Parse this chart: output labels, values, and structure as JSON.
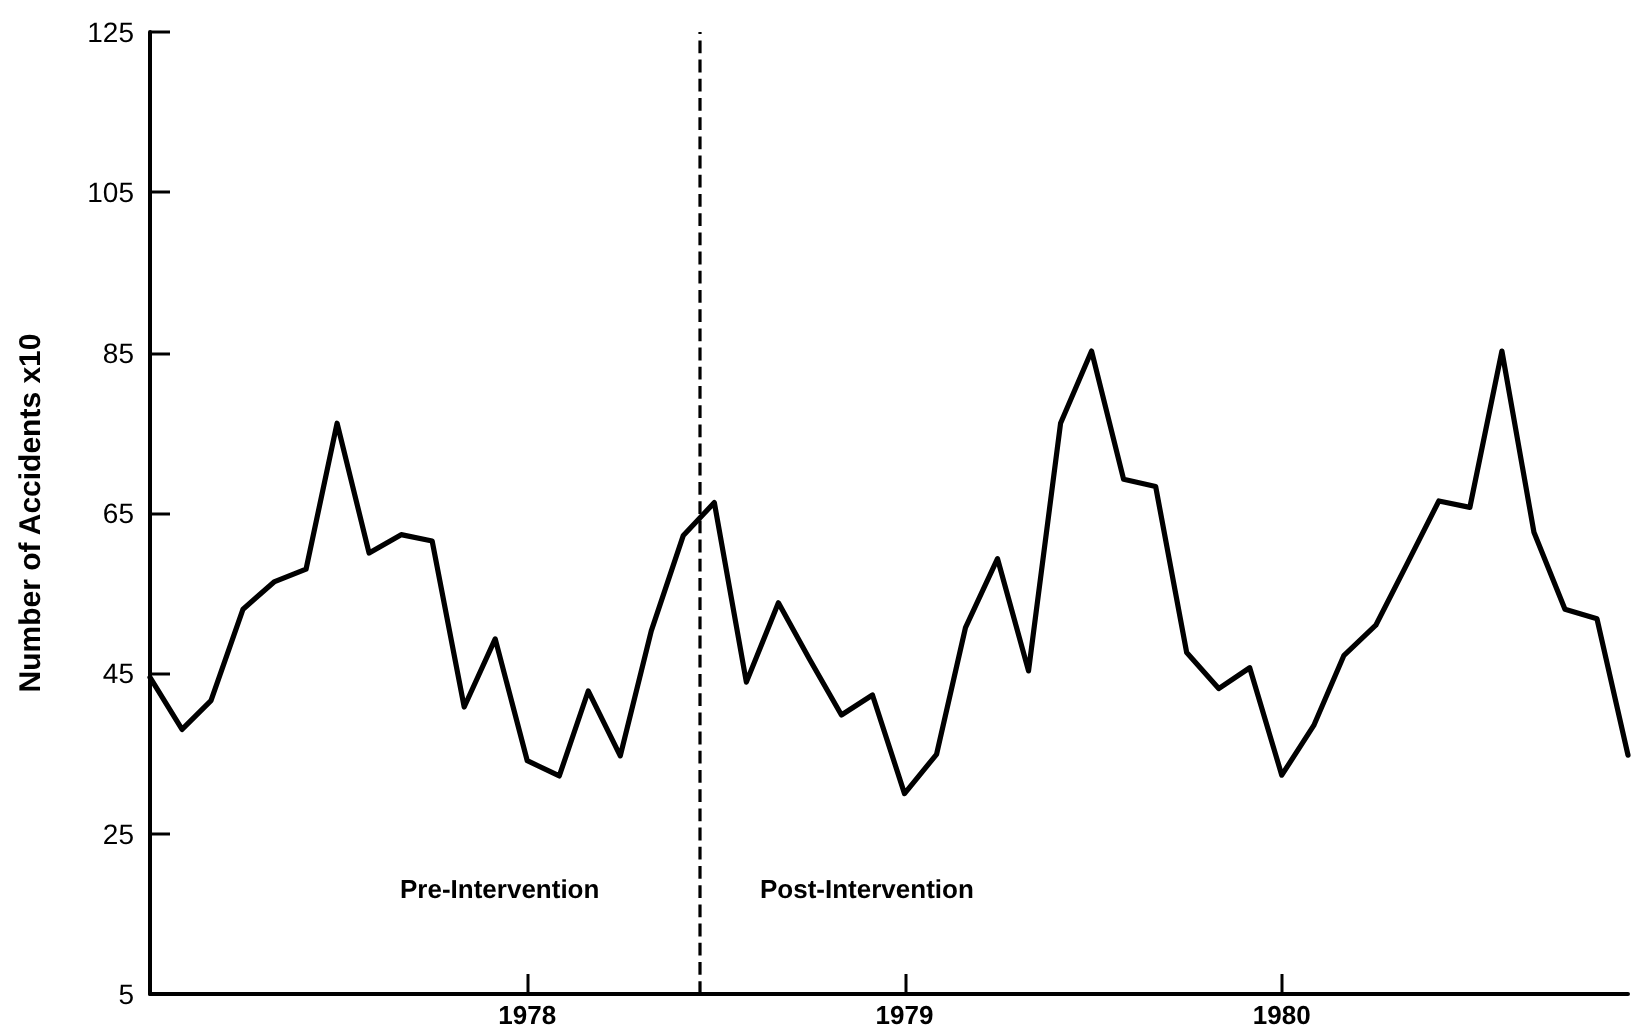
{
  "chart_data": {
    "type": "line",
    "ylabel": "Number of Accidents x10",
    "x": [
      "1977-01",
      "1977-02",
      "1977-03",
      "1977-04",
      "1977-05",
      "1977-06",
      "1977-07",
      "1977-08",
      "1977-09",
      "1977-10",
      "1977-11",
      "1977-12",
      "1978-01",
      "1978-02",
      "1978-03",
      "1978-04",
      "1978-05",
      "1978-06",
      "1978-07",
      "1978-08",
      "1978-09",
      "1978-10",
      "1978-11",
      "1978-12",
      "1979-01",
      "1979-02",
      "1979-03",
      "1979-04",
      "1979-05",
      "1979-06",
      "1979-07",
      "1979-08",
      "1979-09",
      "1979-10",
      "1979-11",
      "1979-12",
      "1980-01",
      "1980-02",
      "1980-03",
      "1980-04",
      "1980-05",
      "1980-06",
      "1980-07",
      "1980-08",
      "1980-09",
      "1980-10",
      "1980-11",
      "1980-12"
    ],
    "series": [
      {
        "color": "#000000",
        "values": [
          44.5,
          38,
          41.6,
          53,
          56.4,
          58,
          76.2,
          60,
          62.3,
          61.5,
          40.8,
          49.3,
          34.1,
          32.2,
          42.8,
          34.7,
          50.3,
          62.2,
          66.3,
          43.9,
          53.8,
          46.8,
          39.8,
          42.3,
          30,
          34.9,
          50.7,
          59.3,
          45.3,
          76.2,
          85.2,
          69.2,
          68.3,
          47.6,
          43.1,
          45.7,
          32.3,
          38.5,
          47.2,
          51,
          58.6,
          66.5,
          65.7,
          85.2,
          62.6,
          53,
          51.8,
          34.8
        ]
      }
    ],
    "xlim": [
      "1977-01",
      "1980-12"
    ],
    "xticks": [
      {
        "value": "1978-01",
        "label": "1978"
      },
      {
        "value": "1979-01",
        "label": "1979"
      },
      {
        "value": "1980-01",
        "label": "1980"
      }
    ],
    "ylim": [
      5,
      125
    ],
    "yticks": [
      5,
      25,
      45,
      65,
      85,
      105,
      125
    ],
    "ref_lines": [
      {
        "axis": "x",
        "value": "1978-06-16",
        "color": "#000000",
        "line_style": "dashed"
      }
    ],
    "annotations": [
      "Pre-Intervention",
      "Post-Intervention"
    ],
    "grid": false,
    "marker": "none",
    "line_style": "solid"
  }
}
